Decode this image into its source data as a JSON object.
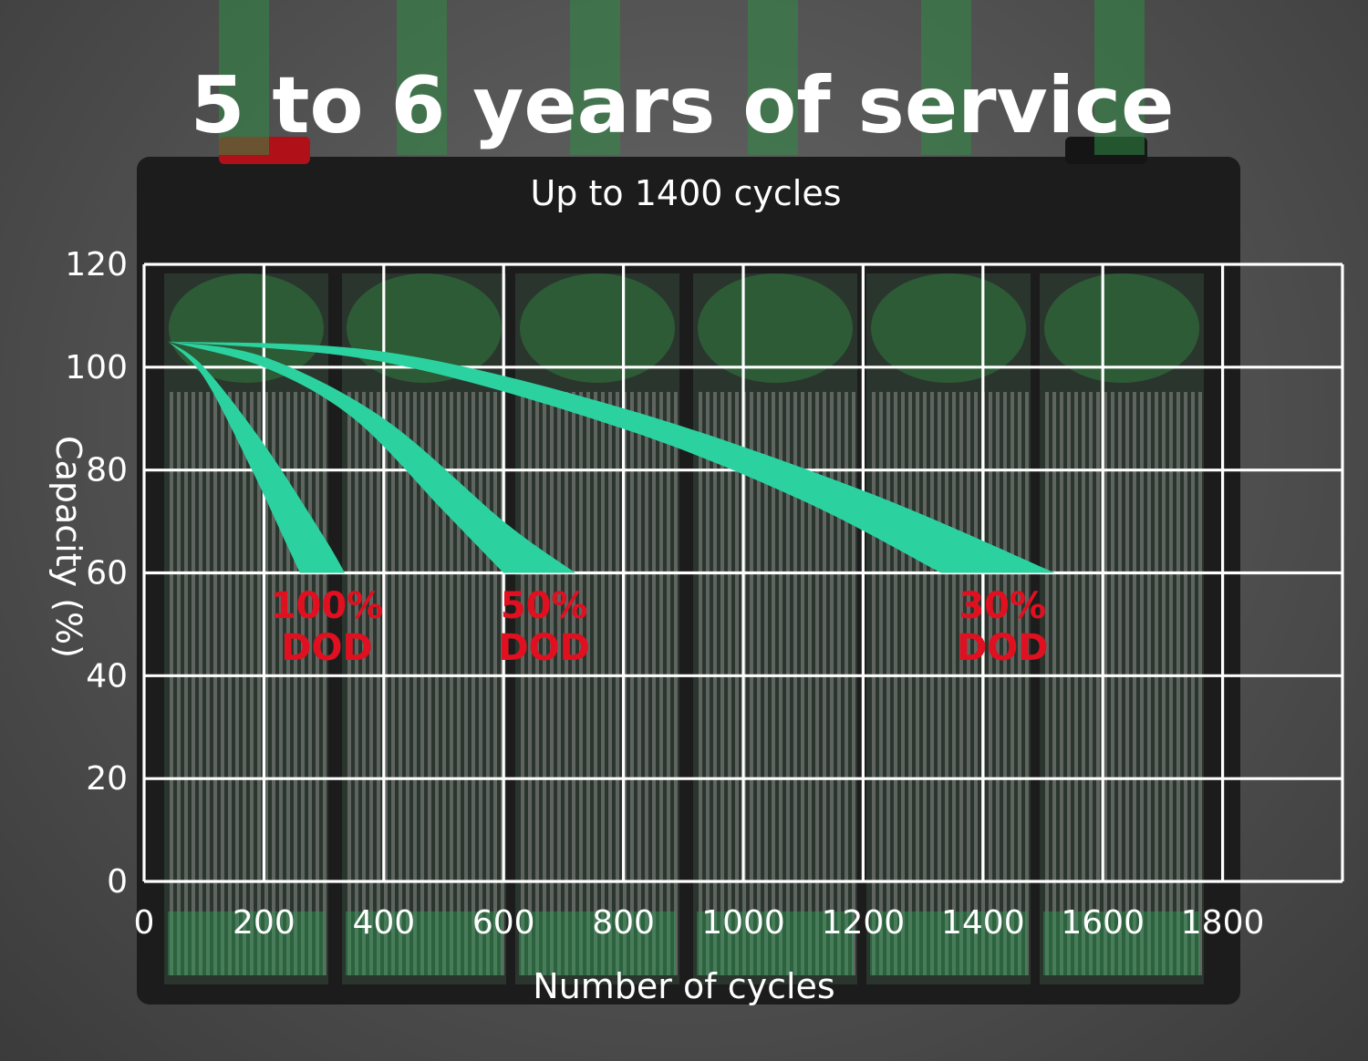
{
  "chart_data": {
    "type": "area",
    "title": "5 to 6 years of service",
    "subtitle": "Up to 1400 cycles",
    "xlabel": "Number of cycles",
    "ylabel": "Capacity (%)",
    "xlim": [
      0,
      1800
    ],
    "ylim": [
      0,
      120
    ],
    "xticks": [
      0,
      200,
      400,
      600,
      800,
      1000,
      1200,
      1400,
      1600,
      1800
    ],
    "yticks": [
      0,
      20,
      40,
      60,
      80,
      100,
      120
    ],
    "grid": true,
    "series": [
      {
        "name": "100%\nDOD",
        "label_lines": [
          "100%",
          "DOD"
        ],
        "upper": {
          "x": [
            40,
            100,
            200,
            300,
            335
          ],
          "y": [
            105,
            100,
            85,
            67,
            60
          ]
        },
        "lower": {
          "x": [
            40,
            100,
            180,
            240,
            260
          ],
          "y": [
            105,
            98,
            80,
            65,
            60
          ]
        }
      },
      {
        "name": "50%\nDOD",
        "label_lines": [
          "50%",
          "DOD"
        ],
        "upper": {
          "x": [
            40,
            200,
            400,
            600,
            720
          ],
          "y": [
            105,
            102,
            90,
            70,
            60
          ]
        },
        "lower": {
          "x": [
            40,
            200,
            350,
            500,
            600
          ],
          "y": [
            105,
            100,
            90,
            72,
            60
          ]
        }
      },
      {
        "name": "30%\nDOD",
        "label_lines": [
          "30%",
          "DOD"
        ],
        "upper": {
          "x": [
            40,
            400,
            800,
            1200,
            1520
          ],
          "y": [
            105,
            103,
            92,
            76,
            60
          ]
        },
        "lower": {
          "x": [
            40,
            400,
            800,
            1100,
            1330
          ],
          "y": [
            105,
            101,
            88,
            74,
            60
          ]
        }
      }
    ],
    "colors": {
      "band": "#2bd2a0",
      "label": "#e01020",
      "grid": "#ffffff"
    }
  }
}
